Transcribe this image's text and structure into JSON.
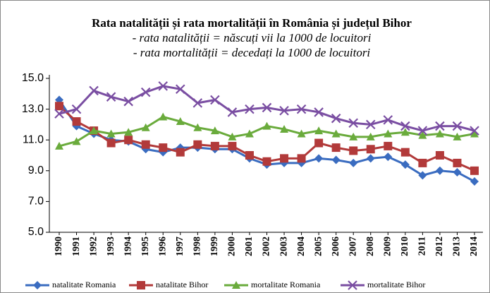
{
  "chart_data": {
    "type": "line",
    "title": "Rata natalității și rata mortalității în România și județul Bihor",
    "subtitle": [
      "- rata natalității = născuți vii la 1000 de locuitori",
      "- rata mortalității = decedați la 1000 de locuitori"
    ],
    "categories": [
      "1990",
      "1991",
      "1992",
      "1993",
      "1994",
      "1995",
      "1996",
      "1997",
      "1998",
      "1999",
      "2000",
      "2001",
      "2002",
      "2003",
      "2004",
      "2005",
      "2006",
      "2007",
      "2008",
      "2009",
      "2010",
      "2011",
      "2012",
      "2013",
      "2014"
    ],
    "ylim": [
      5,
      15
    ],
    "yticks": [
      {
        "value": 5,
        "label": "5.0"
      },
      {
        "value": 7,
        "label": "7.0"
      },
      {
        "value": 9,
        "label": "9.0"
      },
      {
        "value": 11,
        "label": "11.0"
      },
      {
        "value": 13,
        "label": "13.0"
      },
      {
        "value": 15,
        "label": "15.0"
      }
    ],
    "grid": false,
    "legend": "bottom",
    "series": [
      {
        "name": "natalitate Romania",
        "color": "#3a6cc0",
        "marker": "diamond",
        "values": [
          13.6,
          11.9,
          11.4,
          11.0,
          10.9,
          10.4,
          10.2,
          10.5,
          10.5,
          10.4,
          10.4,
          9.8,
          9.4,
          9.5,
          9.5,
          9.8,
          9.7,
          9.5,
          9.8,
          9.9,
          9.4,
          8.7,
          9.0,
          8.9,
          8.3
        ]
      },
      {
        "name": "natalitate Bihor",
        "color": "#b23a3a",
        "marker": "square",
        "values": [
          13.2,
          12.2,
          11.6,
          10.8,
          11.0,
          10.7,
          10.5,
          10.2,
          10.7,
          10.6,
          10.6,
          10.0,
          9.6,
          9.8,
          9.8,
          10.8,
          10.5,
          10.3,
          10.4,
          10.6,
          10.2,
          9.5,
          10.0,
          9.5,
          9.0
        ]
      },
      {
        "name": "mortalitate Romania",
        "color": "#6aab3c",
        "marker": "triangle",
        "values": [
          10.6,
          10.9,
          11.6,
          11.4,
          11.5,
          11.8,
          12.5,
          12.2,
          11.8,
          11.6,
          11.2,
          11.4,
          11.9,
          11.7,
          11.4,
          11.6,
          11.4,
          11.2,
          11.2,
          11.4,
          11.5,
          11.3,
          11.4,
          11.2,
          11.4
        ]
      },
      {
        "name": "mortalitate Bihor",
        "color": "#7a4ea2",
        "marker": "x",
        "values": [
          12.7,
          13.0,
          14.2,
          13.8,
          13.5,
          14.1,
          14.5,
          14.3,
          13.4,
          13.6,
          12.8,
          13.0,
          13.1,
          12.9,
          13.0,
          12.8,
          12.4,
          12.1,
          12.0,
          12.3,
          11.9,
          11.6,
          11.9,
          11.9,
          11.6
        ]
      }
    ]
  }
}
